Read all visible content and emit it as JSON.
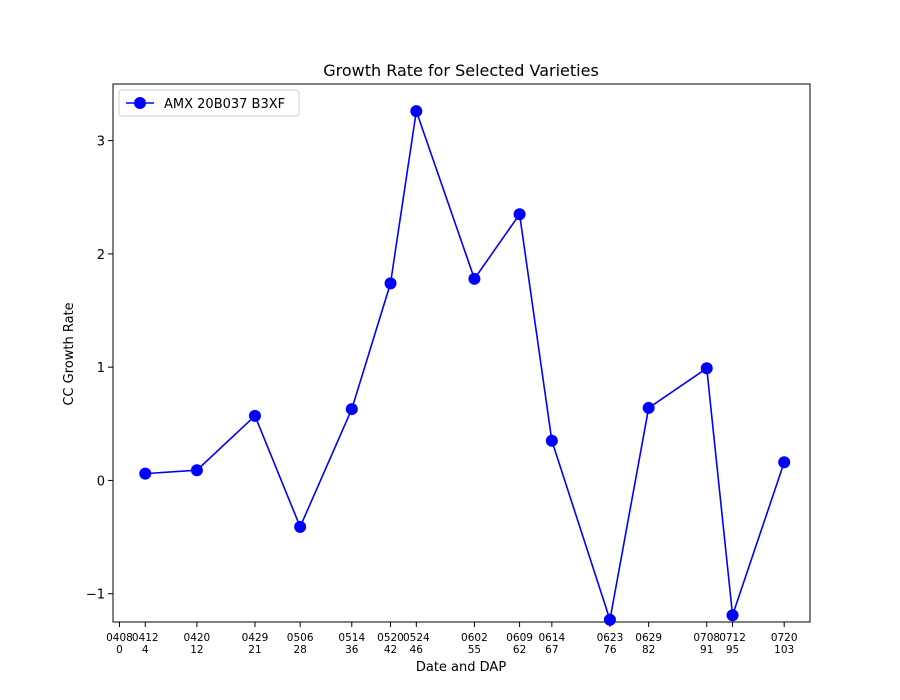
{
  "chart_data": {
    "type": "line",
    "title": "Growth Rate for Selected Varieties",
    "xlabel": "Date and DAP",
    "ylabel": "CC Growth Rate",
    "xlim": [
      -1,
      107
    ],
    "ylim": [
      -1.25,
      3.5
    ],
    "grid": false,
    "legend_position": "top-left",
    "x_ticks": [
      {
        "value": 0,
        "date": "0408",
        "dap": "0"
      },
      {
        "value": 4,
        "date": "0412",
        "dap": "4"
      },
      {
        "value": 12,
        "date": "0420",
        "dap": "12"
      },
      {
        "value": 21,
        "date": "0429",
        "dap": "21"
      },
      {
        "value": 28,
        "date": "0506",
        "dap": "28"
      },
      {
        "value": 36,
        "date": "0514",
        "dap": "36"
      },
      {
        "value": 42,
        "date": "0520",
        "dap": "42"
      },
      {
        "value": 46,
        "date": "0524",
        "dap": "46"
      },
      {
        "value": 55,
        "date": "0602",
        "dap": "55"
      },
      {
        "value": 62,
        "date": "0609",
        "dap": "62"
      },
      {
        "value": 67,
        "date": "0614",
        "dap": "67"
      },
      {
        "value": 76,
        "date": "0623",
        "dap": "76"
      },
      {
        "value": 82,
        "date": "0629",
        "dap": "82"
      },
      {
        "value": 91,
        "date": "0708",
        "dap": "91"
      },
      {
        "value": 95,
        "date": "0712",
        "dap": "95"
      },
      {
        "value": 103,
        "date": "0720",
        "dap": "103"
      }
    ],
    "y_ticks": [
      {
        "value": -1,
        "label": "−1"
      },
      {
        "value": 0,
        "label": "0"
      },
      {
        "value": 1,
        "label": "1"
      },
      {
        "value": 2,
        "label": "2"
      },
      {
        "value": 3,
        "label": "3"
      }
    ],
    "series": [
      {
        "name": "AMX 20B037 B3XF",
        "color": "#0000ff",
        "marker": "circle",
        "x": [
          4,
          12,
          21,
          28,
          36,
          42,
          46,
          55,
          62,
          67,
          76,
          82,
          91,
          95,
          103
        ],
        "y": [
          0.06,
          0.09,
          0.57,
          -0.41,
          0.63,
          1.74,
          3.26,
          1.78,
          2.35,
          0.35,
          -1.23,
          0.64,
          0.99,
          -1.19,
          0.16
        ]
      }
    ]
  }
}
